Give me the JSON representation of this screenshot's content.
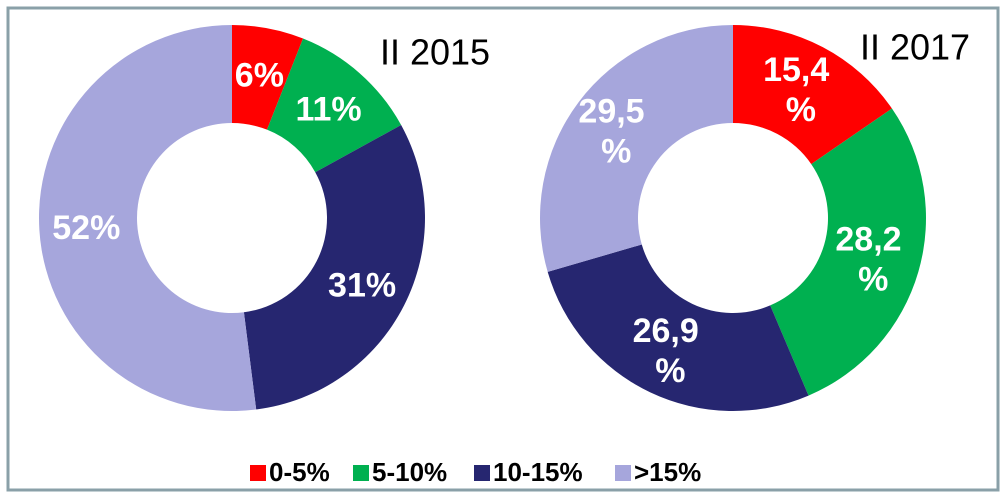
{
  "legend": {
    "categories": [
      "0-5%",
      "5-10%",
      "10-15%",
      ">15%"
    ],
    "colors": [
      "#ff0000",
      "#00b050",
      "#262670",
      "#a6a6dc"
    ]
  },
  "chart_data": [
    {
      "type": "pie",
      "title": "II 2015",
      "values": [
        6,
        11,
        31,
        52
      ],
      "value_labels": [
        "6%",
        "11%",
        "31%",
        "52%"
      ]
    },
    {
      "type": "pie",
      "title": "II 2017",
      "values": [
        15.4,
        28.2,
        26.9,
        29.5
      ],
      "value_labels": [
        "15,4 %",
        "28,2 %",
        "26,9 %",
        "29,5 %"
      ]
    }
  ]
}
